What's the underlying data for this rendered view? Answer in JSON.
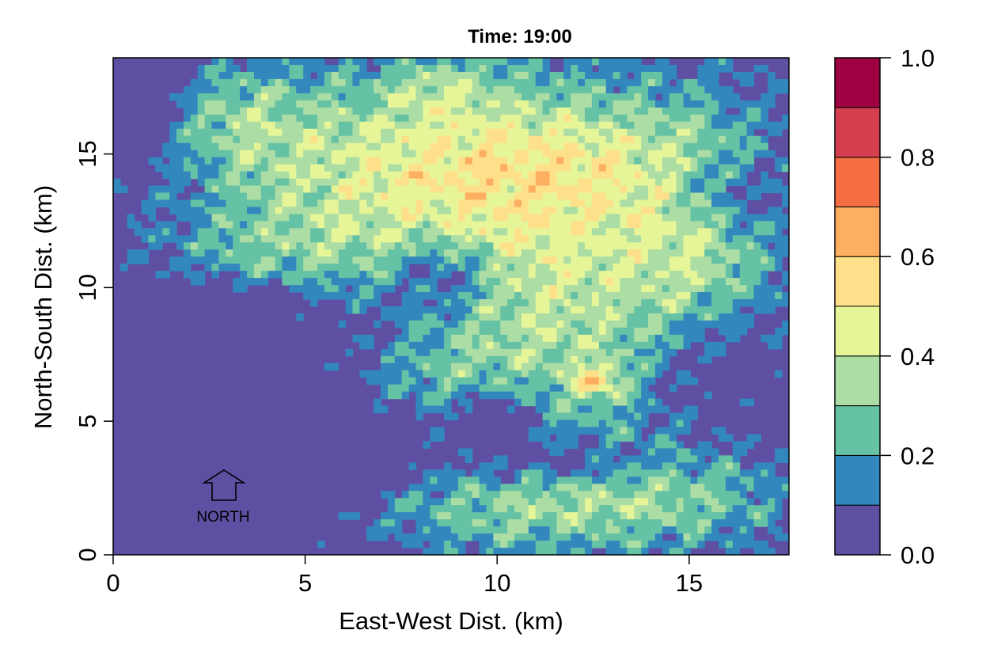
{
  "chart_data": {
    "type": "heatmap",
    "subtype": "filled-contour",
    "title": "Time: 19:00",
    "xlabel": "East-West Dist. (km)",
    "ylabel": "North-South Dist. (km)",
    "xlim": [
      0,
      17.6
    ],
    "ylim": [
      0,
      18.6
    ],
    "xticks": [
      0,
      5,
      10,
      15
    ],
    "yticks": [
      0,
      5,
      10,
      15
    ],
    "x_tick_labels": [
      "0",
      "5",
      "10",
      "15"
    ],
    "y_tick_labels": [
      "0",
      "5",
      "10",
      "15"
    ],
    "colorbar": {
      "levels": [
        0,
        0.1,
        0.2,
        0.3,
        0.4,
        0.5,
        0.6,
        0.7,
        0.8,
        0.9,
        1.0
      ],
      "colors": [
        "#5E4FA2",
        "#3288BD",
        "#66C2A5",
        "#ABDDA4",
        "#E6F598",
        "#FEE08B",
        "#FDAE61",
        "#F46D43",
        "#D53E4F",
        "#9E0142"
      ],
      "ticks": [
        0.0,
        0.2,
        0.4,
        0.6,
        0.8,
        1.0
      ],
      "tick_labels": [
        "0.0",
        "0.2",
        "0.4",
        "0.6",
        "0.8",
        "1.0"
      ]
    },
    "annotation": {
      "text": "NORTH",
      "icon": "north-arrow-icon",
      "at": [
        2.8,
        2.5
      ]
    },
    "field": {
      "blobs": [
        {
          "x": 11.5,
          "y": 9.5,
          "sx": 3.0,
          "sy": 4.5,
          "amp": 0.36
        },
        {
          "x": 11.0,
          "y": 15.0,
          "sx": 3.5,
          "sy": 2.2,
          "amp": 0.3
        },
        {
          "x": 5.5,
          "y": 14.0,
          "sx": 3.0,
          "sy": 3.0,
          "amp": 0.27
        },
        {
          "x": 3.5,
          "y": 11.0,
          "sx": 2.5,
          "sy": 1.3,
          "amp": 0.22
        },
        {
          "x": 15.5,
          "y": 11.5,
          "sx": 1.5,
          "sy": 3.5,
          "amp": 0.22
        },
        {
          "x": 14.5,
          "y": 2.0,
          "sx": 2.5,
          "sy": 1.5,
          "amp": 0.24
        },
        {
          "x": 9.5,
          "y": 1.5,
          "sx": 2.5,
          "sy": 1.2,
          "amp": 0.2
        },
        {
          "x": 6.5,
          "y": 6.5,
          "sx": 2.5,
          "sy": 1.2,
          "amp": 0.18
        },
        {
          "x": 12.6,
          "y": 6.5,
          "sx": 0.45,
          "sy": 0.45,
          "amp": 0.3
        },
        {
          "x": 5.5,
          "y": 2.0,
          "sx": 1.8,
          "sy": 0.9,
          "amp": 0.12
        },
        {
          "x": 3.0,
          "y": 16.5,
          "sx": 1.5,
          "sy": 1.5,
          "amp": 0.18
        },
        {
          "x": 8.5,
          "y": 17.6,
          "sx": 1.0,
          "sy": 0.8,
          "amp": 0.15
        }
      ],
      "voids": [
        {
          "x": 2.5,
          "y": 5.5,
          "sx": 3.0,
          "sy": 3.5,
          "amp": 0.45
        },
        {
          "x": 8.5,
          "y": 10.5,
          "sx": 1.0,
          "sy": 1.0,
          "amp": 0.22
        },
        {
          "x": 10.0,
          "y": 5.0,
          "sx": 0.9,
          "sy": 0.9,
          "amp": 0.25
        },
        {
          "x": 15.5,
          "y": 7.0,
          "sx": 1.3,
          "sy": 1.8,
          "amp": 0.2
        },
        {
          "x": 16.0,
          "y": 13.5,
          "sx": 1.0,
          "sy": 1.0,
          "amp": 0.2
        },
        {
          "x": 6.5,
          "y": 3.5,
          "sx": 1.0,
          "sy": 1.0,
          "amp": 0.15
        },
        {
          "x": 12.0,
          "y": 3.5,
          "sx": 1.5,
          "sy": 0.6,
          "amp": 0.2
        },
        {
          "x": 0.5,
          "y": 18.0,
          "sx": 1.0,
          "sy": 2.0,
          "amp": 0.25
        }
      ]
    }
  }
}
